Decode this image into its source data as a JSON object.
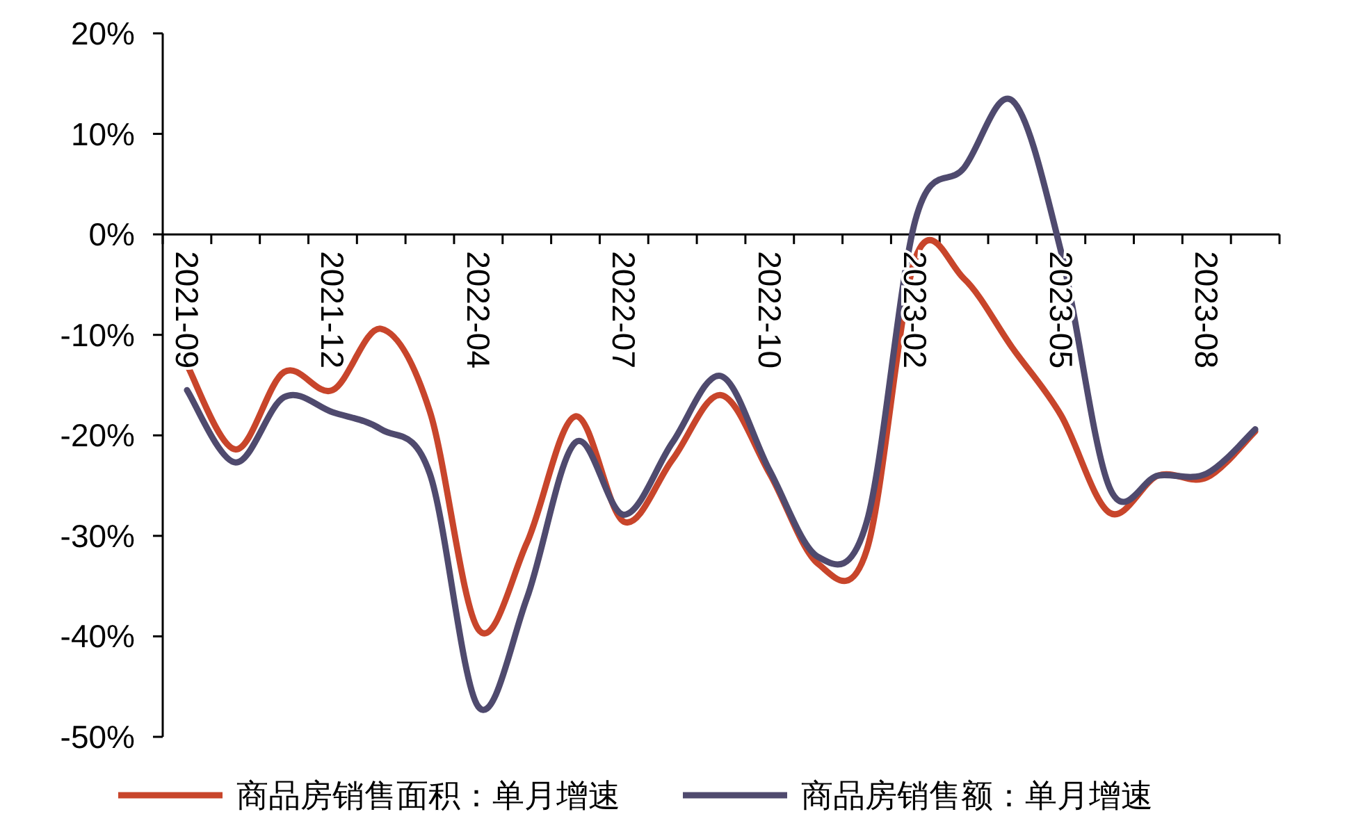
{
  "chart_data": {
    "type": "line",
    "categories": [
      "2021-09",
      null,
      null,
      "2021-12",
      null,
      null,
      "2022-04",
      null,
      null,
      "2022-07",
      null,
      null,
      "2022-10",
      null,
      null,
      "2023-02",
      null,
      null,
      "2023-05",
      null,
      null,
      "2023-08",
      null
    ],
    "series": [
      {
        "name": "商品房销售面积：单月增速",
        "color": "#c8452b",
        "values": [
          -13,
          -21.4,
          -13.7,
          -15.5,
          -9.4,
          -17.6,
          -39.3,
          -30.7,
          -18.1,
          -28.6,
          -22.4,
          -16,
          -23.8,
          -32.8,
          -31.4,
          -2.4,
          -4.4,
          -11.3,
          -18,
          -27.7,
          -24,
          -24.2,
          -19.6
        ]
      },
      {
        "name": "商品房销售额：单月增速",
        "color": "#4f4a6e",
        "values": [
          -15.5,
          -22.7,
          -16.2,
          -17.7,
          -19.4,
          -23.8,
          -47,
          -36.2,
          -20.7,
          -27.9,
          -20.7,
          -14.1,
          -23.5,
          -32.1,
          -28.6,
          1.4,
          6.6,
          13.3,
          -1.7,
          -25.2,
          -24,
          -23.8,
          -19.4
        ]
      }
    ],
    "ylim": [
      -50,
      20
    ],
    "yticks": [
      {
        "value": -50,
        "label": "-50%"
      },
      {
        "value": -40,
        "label": "-40%"
      },
      {
        "value": -30,
        "label": "-30%"
      },
      {
        "value": -20,
        "label": "-20%"
      },
      {
        "value": -10,
        "label": "-10%"
      },
      {
        "value": 0,
        "label": "0%"
      },
      {
        "value": 10,
        "label": "10%"
      },
      {
        "value": 20,
        "label": "20%"
      }
    ],
    "legend": "bottom",
    "grid": false,
    "marker": "none",
    "line_style": "solid"
  }
}
